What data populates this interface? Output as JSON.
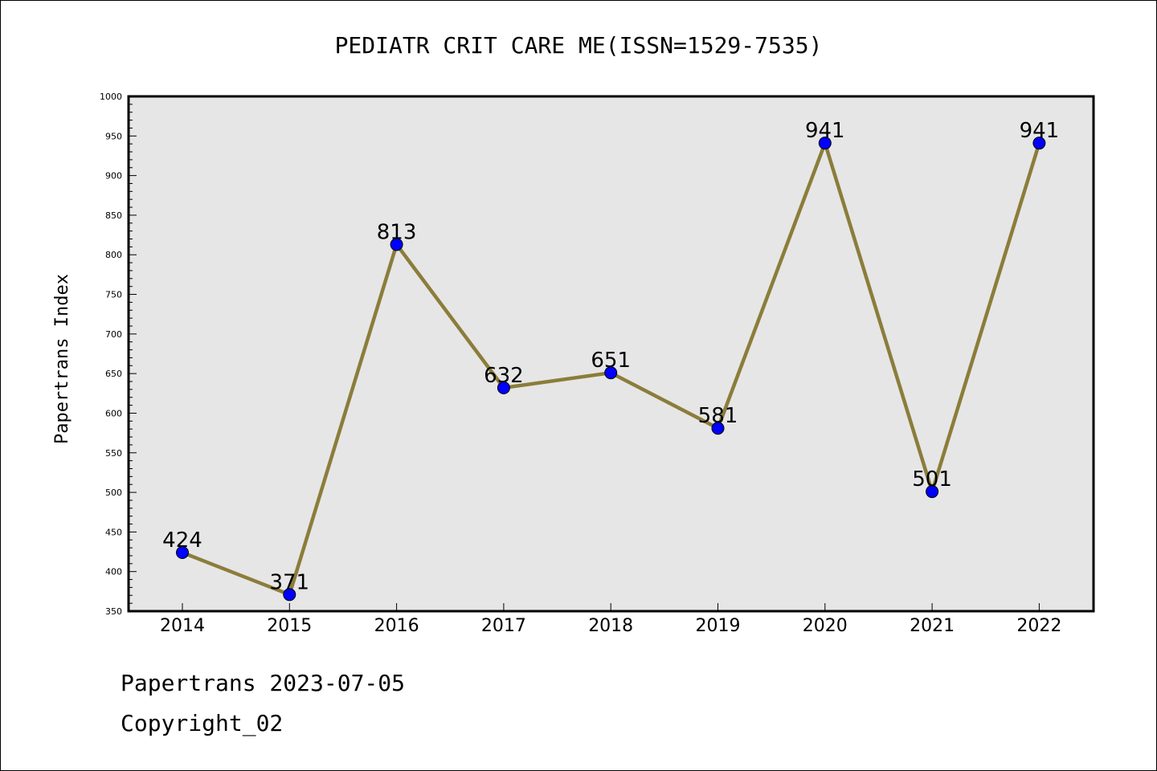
{
  "chart_data": {
    "type": "line",
    "title": "PEDIATR CRIT CARE ME(ISSN=1529-7535)",
    "xlabel": "",
    "ylabel": "Papertrans Index",
    "categories": [
      "2014",
      "2015",
      "2016",
      "2017",
      "2018",
      "2019",
      "2020",
      "2021",
      "2022"
    ],
    "series": [
      {
        "values": [
          424,
          371,
          813,
          632,
          651,
          581,
          941,
          501,
          941
        ]
      }
    ],
    "data_labels": [
      "424",
      "371",
      "813",
      "632",
      "651",
      "581",
      "941",
      "501",
      "941"
    ],
    "ylim": [
      350,
      1000
    ],
    "yticks": [
      350,
      400,
      450,
      500,
      550,
      600,
      650,
      700,
      750,
      800,
      850,
      900,
      950,
      1000
    ],
    "grid": false,
    "legend": "none",
    "colors": {
      "line": "#8B7D3A",
      "marker": "#0000FF",
      "plot_background": "#E6E6E6"
    }
  },
  "footer": {
    "line1": "Papertrans 2023-07-05",
    "line2": "Copyright_02"
  }
}
